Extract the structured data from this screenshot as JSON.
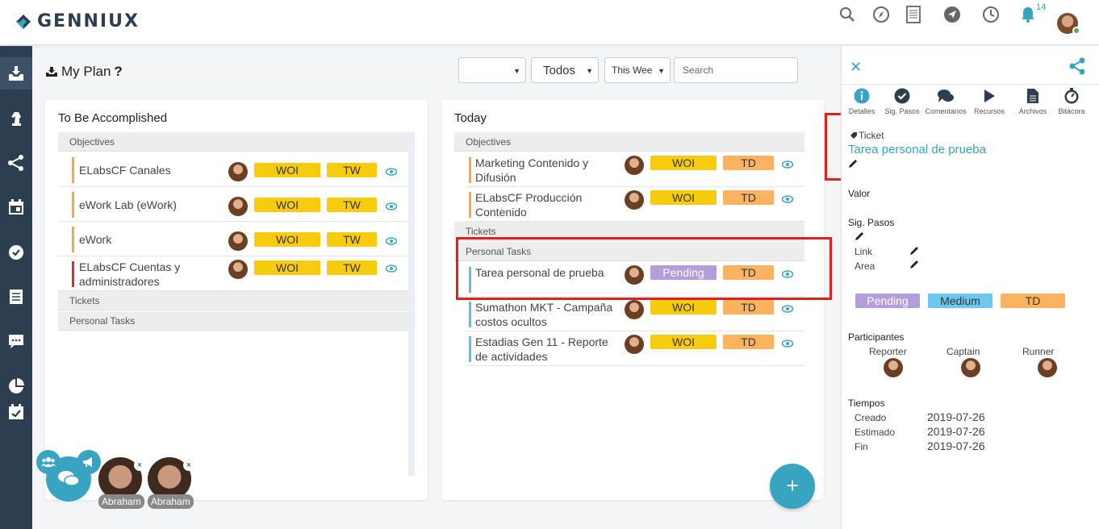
{
  "app": {
    "brand": "GENNIUX",
    "notification_count": "14"
  },
  "header": {
    "title": "My Plan",
    "help": "?",
    "filter_blank": "",
    "filter_status": "Todos",
    "filter_period": "This Wee",
    "search_placeholder": "Search"
  },
  "colors": {
    "accent": "#39a4c2",
    "sidebar": "#2c3e50",
    "woi": "#f7cc0f",
    "td": "#fbb360",
    "pending": "#b39ddb",
    "medium": "#6cc8ee",
    "highlight": "#e02020"
  },
  "left_column": {
    "title": "To Be Accomplished",
    "sections": {
      "objectives": "Objectives",
      "tickets": "Tickets",
      "personal": "Personal Tasks"
    },
    "rows": [
      {
        "name": "ELabsCF Canales",
        "tag1": "WOI",
        "tag2": "TW",
        "bar": "#f5a742"
      },
      {
        "name": "eWork Lab (eWork)",
        "tag1": "WOI",
        "tag2": "TW",
        "bar": "#f5a742"
      },
      {
        "name": "eWork",
        "tag1": "WOI",
        "tag2": "TW",
        "bar": "#f5a742"
      },
      {
        "name": "ELabsCF Cuentas y administradores",
        "tag1": "WOI",
        "tag2": "TW",
        "bar": "#d32f2f"
      }
    ]
  },
  "right_column": {
    "title": "Today",
    "sections": {
      "objectives": "Objectives",
      "tickets": "Tickets",
      "personal": "Personal Tasks"
    },
    "objective_rows": [
      {
        "name": "Marketing Contenido y Difusión",
        "tag1": "WOI",
        "tag2": "TD"
      },
      {
        "name": "ELabsCF Producción Contenido",
        "tag1": "WOI",
        "tag2": "TD"
      }
    ],
    "personal_rows": [
      {
        "name": "Tarea personal de prueba",
        "tag1": "Pending",
        "tag2": "TD"
      },
      {
        "name": "Sumathon MKT - Campaña costos ocultos",
        "tag1": "WOI",
        "tag2": "TD"
      },
      {
        "name": "Estadias Gen 11 - Reporte de actividades",
        "tag1": "WOI",
        "tag2": "TD"
      }
    ]
  },
  "panel": {
    "tabs": [
      "Detalles",
      "Sig. Pasos",
      "Comentarios",
      "Recursos",
      "Archivos",
      "Bitácora"
    ],
    "ticket_label": "Ticket",
    "ticket_title": "Tarea personal de prueba",
    "valor_label": "Valor",
    "sig_pasos_label": "Sig. Pasos",
    "link_label": "Link",
    "area_label": "Area",
    "status": "Pending",
    "priority": "Medium",
    "period": "TD",
    "participants_label": "Participantes",
    "roles": [
      "Reporter",
      "Captain",
      "Runner"
    ],
    "tiempos_label": "Tiempos",
    "times": [
      {
        "label": "Creado",
        "value": "2019-07-26"
      },
      {
        "label": "Estimado",
        "value": "2019-07-26"
      },
      {
        "label": "Fin",
        "value": "2019-07-26"
      }
    ]
  },
  "chat": {
    "contacts": [
      "Abraham",
      "Abraham"
    ],
    "close": "×"
  },
  "fab": {
    "plus": "+"
  }
}
